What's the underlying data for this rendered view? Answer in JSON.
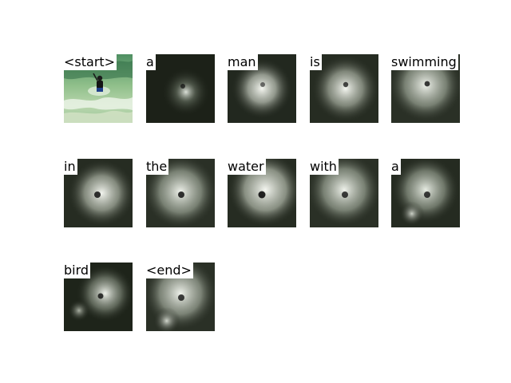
{
  "caption_tokens": [
    {
      "word": "<start>",
      "kind": "original"
    },
    {
      "word": "a",
      "kind": "attention"
    },
    {
      "word": "man",
      "kind": "attention"
    },
    {
      "word": "is",
      "kind": "attention"
    },
    {
      "word": "swimming",
      "kind": "attention"
    },
    {
      "word": "in",
      "kind": "attention"
    },
    {
      "word": "the",
      "kind": "attention"
    },
    {
      "word": "water",
      "kind": "attention"
    },
    {
      "word": "with",
      "kind": "attention"
    },
    {
      "word": "a",
      "kind": "attention"
    },
    {
      "word": "bird",
      "kind": "attention"
    },
    {
      "word": "<end>",
      "kind": "attention"
    }
  ],
  "colors": {
    "background": "#ffffff",
    "water_light": "#9cc79a",
    "water_dark": "#3f7a4f",
    "foam": "#f2f6f1",
    "attention_dark": "#1c2118",
    "attention_glow": "#f4f6f0",
    "subject": "#111111"
  }
}
